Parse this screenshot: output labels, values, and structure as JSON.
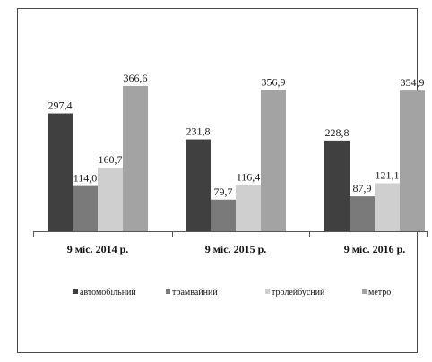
{
  "chart_data": {
    "type": "bar",
    "categories": [
      "9 міс. 2014 р.",
      "9 міс. 2015 р.",
      "9 міс. 2016 р."
    ],
    "series": [
      {
        "name": "автомобільний",
        "values": [
          297.4,
          231.8,
          228.8
        ],
        "labels": [
          "297,4",
          "231,8",
          "228,8"
        ],
        "color": "#404040"
      },
      {
        "name": "трамвайний",
        "values": [
          114.0,
          79.7,
          87.9
        ],
        "labels": [
          "114,0",
          "79,7",
          "87,9"
        ],
        "color": "#7a7a7a"
      },
      {
        "name": "тролейбусний",
        "values": [
          160.7,
          116.4,
          121.1
        ],
        "labels": [
          "160,7",
          "116,4",
          "121,1"
        ],
        "color": "#cfcfcf"
      },
      {
        "name": "метро",
        "values": [
          366.6,
          356.9,
          354.9
        ],
        "labels": [
          "366,6",
          "356,9",
          "354,9"
        ],
        "color": "#a3a3a3"
      }
    ],
    "title": "",
    "xlabel": "",
    "ylabel": "",
    "ylim": [
      0,
      400
    ],
    "grid": false,
    "legend_position": "bottom"
  }
}
